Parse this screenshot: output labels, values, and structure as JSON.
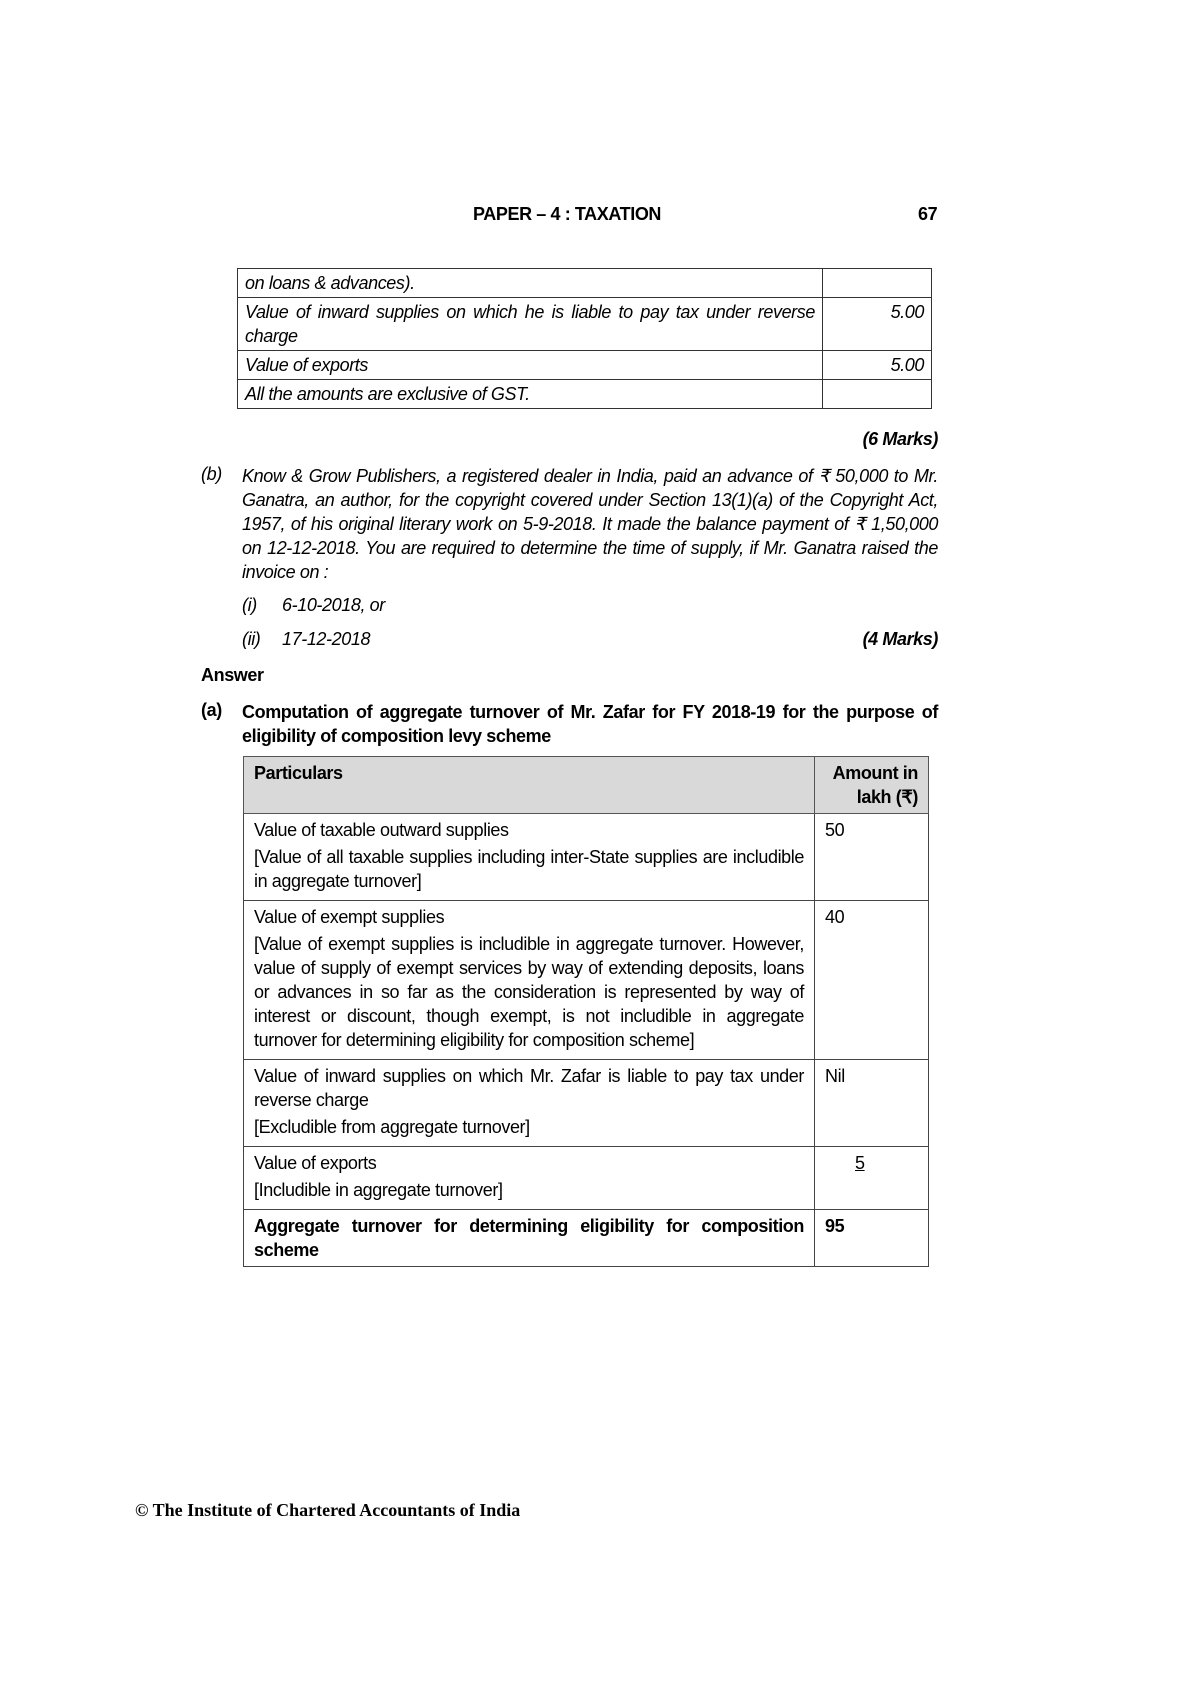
{
  "header": {
    "title": "PAPER – 4 : TAXATION",
    "page_number": "67"
  },
  "top_table": {
    "rows": [
      {
        "particular": "on loans & advances).",
        "amount": ""
      },
      {
        "particular": "Value of inward supplies on which he is liable to pay tax under reverse charge",
        "amount": "5.00"
      },
      {
        "particular": "Value of exports",
        "amount": "5.00"
      },
      {
        "particular": "All the amounts are exclusive of GST.",
        "amount": ""
      }
    ]
  },
  "marks_a": "(6 Marks)",
  "question_b": {
    "label": "(b)",
    "text": "Know & Grow Publishers,  a registered dealer in India, paid an advance of ₹ 50,000 to Mr. Ganatra, an author, for the copyright covered under Section 13(1)(a) of the Copyright Act, 1957, of his original literary work on 5-9-2018.  It made the balance payment of ₹ 1,50,000 on 12-12-2018.  You  are required to determine the time of supply, if Mr. Ganatra raised the invoice on :",
    "options": [
      {
        "label": "(i)",
        "text": "6-10-2018,  or"
      },
      {
        "label": "(ii)",
        "text": "17-12-2018"
      }
    ],
    "marks": "(4 Marks)"
  },
  "answer_heading": "Answer",
  "answer_a": {
    "label": "(a)",
    "heading": "Computation of aggregate turnover of Mr. Zafar for FY 2018-19 for the purpose of eligibility of composition levy scheme",
    "table": {
      "col_particulars": "Particulars",
      "col_amount": "Amount in lakh (₹)",
      "rows": [
        {
          "title": "Value of taxable outward supplies",
          "note": "[Value of all taxable supplies including inter-State supplies are includible in aggregate turnover]",
          "amount": "50"
        },
        {
          "title": "Value of exempt supplies",
          "note": "[Value of exempt supplies is includible in aggregate turnover. However, value of supply of exempt services by way of extending deposits, loans or advances in so far as the consideration is represented by way of interest or discount, though exempt, is not includible in aggregate turnover for determining eligibility for composition scheme]",
          "amount": "40"
        },
        {
          "title": "Value of inward supplies on which Mr. Zafar is liable to pay tax under reverse charge",
          "note": "[Excludible from aggregate turnover]",
          "amount": "Nil"
        },
        {
          "title": "Value of exports",
          "note": "[Includible in aggregate turnover]",
          "amount": "5"
        }
      ],
      "total": {
        "title": "Aggregate turnover for determining eligibility for composition scheme",
        "amount": "95"
      }
    }
  },
  "footer": "© The Institute of Chartered Accountants of India"
}
